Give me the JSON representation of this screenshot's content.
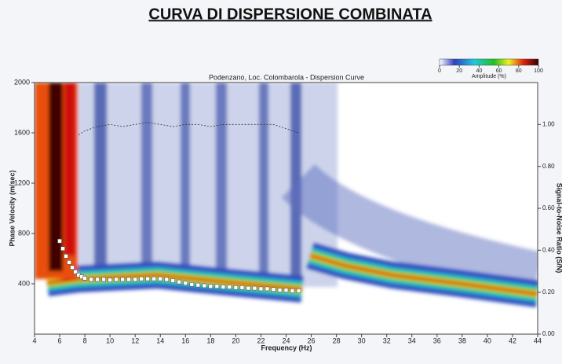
{
  "chart_data": {
    "type": "scatter",
    "title": "CURVA DI DISPERSIONE COMBINATA",
    "subtitle": "Podenzano, Loc. Colombarola - Dispersion Curve",
    "x_label": "Frequency (Hz)",
    "y_label": "Phase Velocity (m/sec)",
    "y2_label": "Signal-to-Noise Ratio (S/N)",
    "xlim": [
      4,
      44
    ],
    "xticks": [
      4,
      6,
      8,
      10,
      12,
      14,
      16,
      18,
      20,
      22,
      24,
      26,
      28,
      30,
      32,
      34,
      36,
      38,
      40,
      42,
      44
    ],
    "ylim": [
      0,
      2000
    ],
    "yticks": [
      400,
      800,
      1200,
      1600,
      2000
    ],
    "y2lim": [
      0,
      1.2
    ],
    "y2ticks": [
      {
        "value": 0,
        "label": "0.00"
      },
      {
        "value": 0.2,
        "label": "0.20"
      },
      {
        "value": 0.4,
        "label": "0.40"
      },
      {
        "value": 0.6,
        "label": "0.60"
      },
      {
        "value": 0.8,
        "label": "0.80"
      },
      {
        "value": 1.0,
        "label": "1.00"
      }
    ],
    "colorbar": {
      "label": "Amplitude (%)",
      "ticks": [
        0,
        20,
        40,
        60,
        80,
        100
      ]
    },
    "series": [
      {
        "color": "#ffffff",
        "x": [
          6.0,
          6.25,
          6.5,
          6.75,
          7.0,
          7.25,
          7.5,
          7.75,
          8.0,
          8.5,
          9,
          9.5,
          10,
          10.5,
          11,
          11.5,
          12,
          12.5,
          13,
          13.5,
          14,
          14.5,
          15,
          15.5,
          16,
          16.5,
          17,
          17.5,
          18,
          18.5,
          19,
          19.5,
          20,
          20.5,
          21,
          21.5,
          22,
          22.5,
          23,
          23.5,
          24,
          24.5,
          25
        ],
        "values": [
          740,
          680,
          620,
          570,
          530,
          495,
          470,
          455,
          445,
          435,
          435,
          435,
          430,
          435,
          435,
          435,
          435,
          440,
          440,
          440,
          440,
          435,
          425,
          415,
          405,
          395,
          390,
          385,
          380,
          380,
          375,
          375,
          370,
          370,
          365,
          365,
          360,
          360,
          355,
          350,
          350,
          345,
          345
        ]
      },
      {
        "color": "#333333",
        "axis": "y2",
        "x": [
          7.5,
          8,
          8.5,
          9,
          10,
          11,
          12,
          13,
          14,
          15,
          16,
          17,
          18,
          19,
          20,
          21,
          22,
          23,
          24,
          25
        ],
        "values": [
          0.95,
          0.97,
          0.98,
          0.99,
          1.0,
          0.99,
          1.0,
          1.01,
          1.0,
          0.99,
          1.0,
          1.0,
          0.99,
          1.0,
          1.0,
          1.0,
          1.0,
          1.0,
          0.98,
          0.96
        ]
      }
    ]
  }
}
